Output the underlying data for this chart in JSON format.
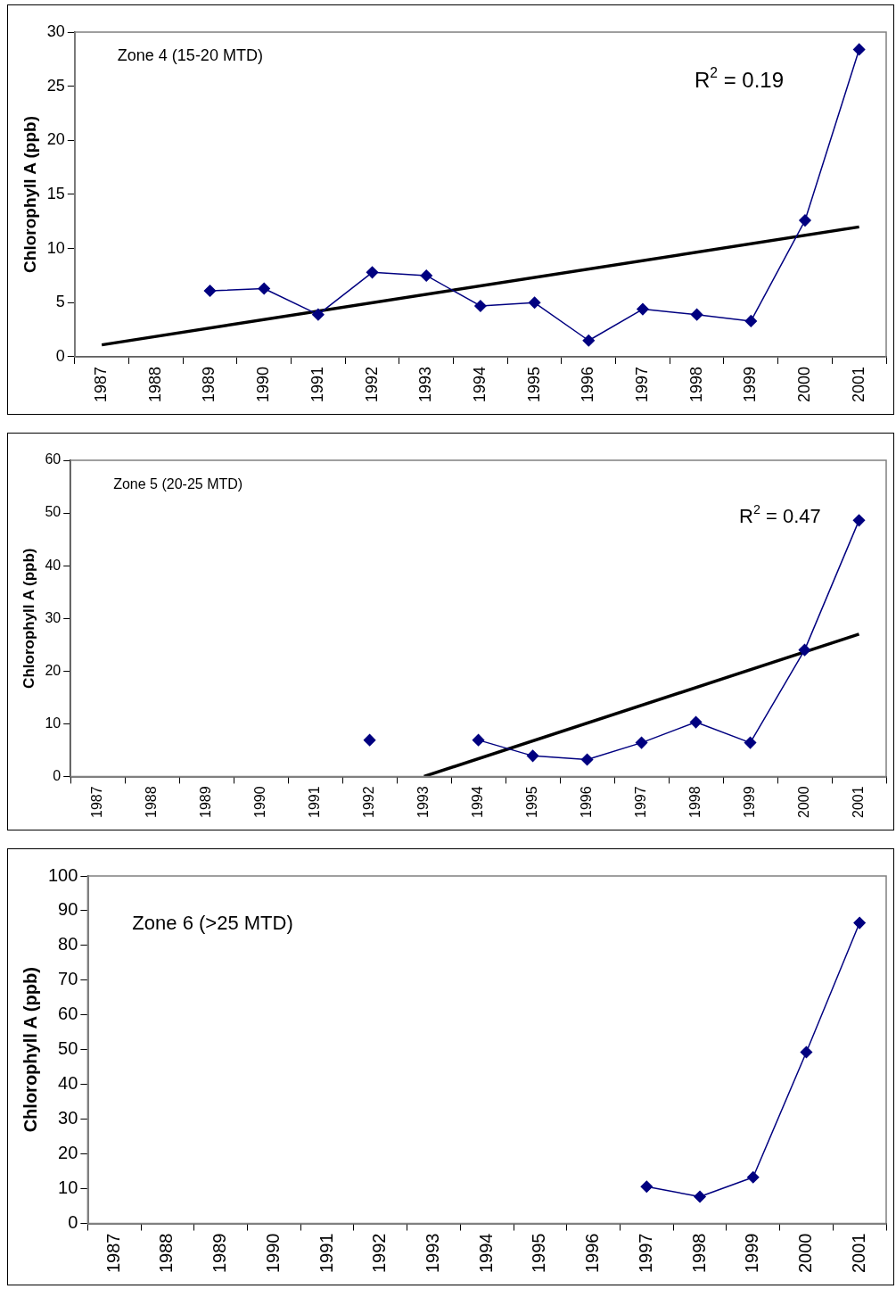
{
  "chart_data": [
    {
      "type": "line",
      "ylabel": "Chlorophyll A (ppb)",
      "categories": [
        "1987",
        "1988",
        "1989",
        "1990",
        "1991",
        "1992",
        "1993",
        "1994",
        "1995",
        "1996",
        "1997",
        "1998",
        "1999",
        "2000",
        "2001"
      ],
      "marker": "diamond",
      "legend": false,
      "ylim": [
        0,
        30
      ],
      "yticks": [
        0,
        5,
        10,
        15,
        20,
        25,
        30
      ],
      "annotations": [
        "Zone 4 (15-20 MTD)",
        "R$^{2}$ = 0.19"
      ],
      "series": [
        {
          "color": "#000080",
          "values": [
            null,
            null,
            6.1,
            6.3,
            3.9,
            7.8,
            7.5,
            4.7,
            5.0,
            1.5,
            4.4,
            3.9,
            3.3,
            12.6,
            28.4
          ]
        },
        {
          "type": "line",
          "marker": "none",
          "color": "#000000",
          "values": [
            1.1,
            null,
            null,
            null,
            null,
            null,
            null,
            null,
            null,
            null,
            null,
            null,
            null,
            null,
            12.0
          ]
        }
      ]
    },
    {
      "type": "line",
      "ylabel": "Chlorophyll A (ppb)",
      "categories": [
        "1987",
        "1988",
        "1989",
        "1990",
        "1991",
        "1992",
        "1993",
        "1994",
        "1995",
        "1996",
        "1997",
        "1998",
        "1999",
        "2000",
        "2001"
      ],
      "marker": "diamond",
      "legend": false,
      "ylim": [
        0,
        60
      ],
      "yticks": [
        0,
        10,
        20,
        30,
        40,
        50,
        60
      ],
      "annotations": [
        "Zone 5 (20-25 MTD)",
        "R$^{2}$ = 0.47"
      ],
      "series": [
        {
          "color": "#000080",
          "values": [
            null,
            null,
            null,
            null,
            null,
            6.9,
            null,
            6.9,
            3.9,
            3.2,
            6.4,
            10.3,
            6.4,
            24.0,
            48.6
          ]
        },
        {
          "type": "line",
          "marker": "none",
          "color": "#000000",
          "values": [
            null,
            null,
            null,
            null,
            null,
            null,
            0,
            null,
            null,
            null,
            null,
            null,
            null,
            null,
            27.0
          ]
        }
      ]
    },
    {
      "type": "line",
      "ylabel": "Chlorophyll A (ppb)",
      "categories": [
        "1987",
        "1988",
        "1989",
        "1990",
        "1991",
        "1992",
        "1993",
        "1994",
        "1995",
        "1996",
        "1997",
        "1998",
        "1999",
        "2000",
        "2001"
      ],
      "marker": "diamond",
      "legend": false,
      "ylim": [
        0,
        100
      ],
      "yticks": [
        0,
        10,
        20,
        30,
        40,
        50,
        60,
        70,
        80,
        90,
        100
      ],
      "annotations": [
        "Zone 6 (>25 MTD)"
      ],
      "series": [
        {
          "color": "#000080",
          "values": [
            null,
            null,
            null,
            null,
            null,
            null,
            null,
            null,
            null,
            null,
            10.6,
            7.7,
            13.3,
            49.3,
            86.5
          ]
        }
      ]
    }
  ]
}
